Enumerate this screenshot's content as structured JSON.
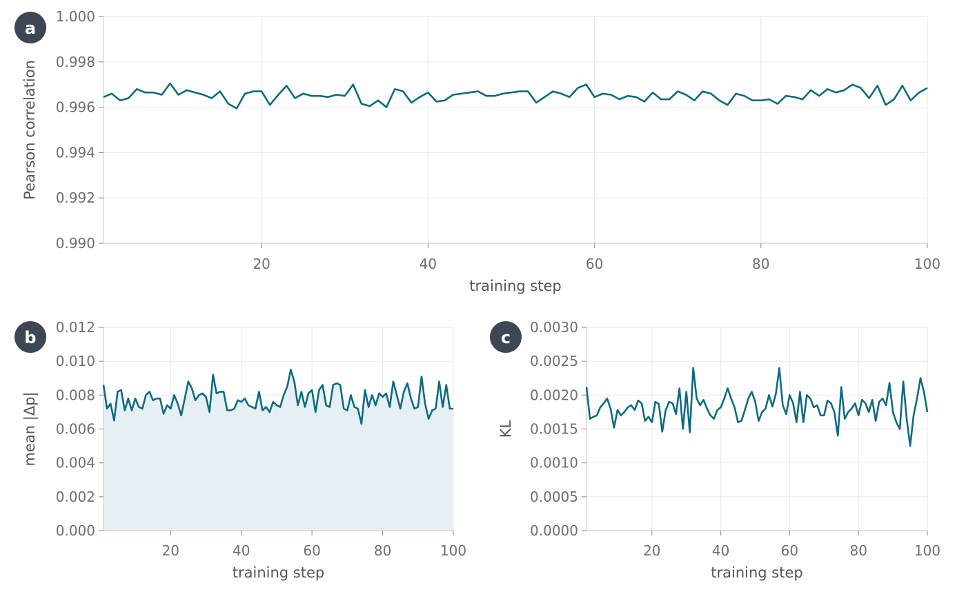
{
  "chart_data": [
    {
      "panel": "a",
      "type": "line",
      "xlabel": "training step",
      "ylabel": "Pearson correlation",
      "xlim": [
        1,
        100
      ],
      "ylim": [
        0.99,
        1.0
      ],
      "xticks": [
        20,
        40,
        60,
        80,
        100
      ],
      "yticks": [
        0.99,
        0.992,
        0.994,
        0.996,
        0.998,
        1.0
      ],
      "xtick_labels": [
        "20",
        "40",
        "60",
        "80",
        "100"
      ],
      "ytick_labels": [
        "0.990",
        "0.992",
        "0.994",
        "0.996",
        "0.998",
        "1.000"
      ],
      "grid": true,
      "fill": false,
      "color": "#0e6a7e",
      "series": [
        {
          "x": [
            1,
            2,
            3,
            4,
            5,
            6,
            7,
            8,
            9,
            10,
            11,
            12,
            13,
            14,
            15,
            16,
            17,
            18,
            19,
            20,
            21,
            22,
            23,
            24,
            25,
            26,
            27,
            28,
            29,
            30,
            31,
            32,
            33,
            34,
            35,
            36,
            37,
            38,
            39,
            40,
            41,
            42,
            43,
            44,
            45,
            46,
            47,
            48,
            49,
            50,
            51,
            52,
            53,
            54,
            55,
            56,
            57,
            58,
            59,
            60,
            61,
            62,
            63,
            64,
            65,
            66,
            67,
            68,
            69,
            70,
            71,
            72,
            73,
            74,
            75,
            76,
            77,
            78,
            79,
            80,
            81,
            82,
            83,
            84,
            85,
            86,
            87,
            88,
            89,
            90,
            91,
            92,
            93,
            94,
            95,
            96,
            97,
            98,
            99,
            100
          ],
          "values": [
            0.99645,
            0.9966,
            0.9963,
            0.9964,
            0.9968,
            0.99665,
            0.99665,
            0.99655,
            0.99705,
            0.99655,
            0.99675,
            0.99665,
            0.99655,
            0.9964,
            0.9967,
            0.99615,
            0.99595,
            0.9966,
            0.9967,
            0.9967,
            0.9961,
            0.99655,
            0.99695,
            0.9964,
            0.9966,
            0.9965,
            0.9965,
            0.99645,
            0.99655,
            0.9965,
            0.997,
            0.99615,
            0.99605,
            0.9963,
            0.996,
            0.9968,
            0.9967,
            0.9962,
            0.99645,
            0.99665,
            0.99625,
            0.9963,
            0.99655,
            0.9966,
            0.99665,
            0.9967,
            0.9965,
            0.9965,
            0.9966,
            0.99665,
            0.9967,
            0.9967,
            0.9962,
            0.99645,
            0.9967,
            0.9966,
            0.99645,
            0.99685,
            0.997,
            0.99645,
            0.9966,
            0.99655,
            0.99635,
            0.9965,
            0.99645,
            0.99625,
            0.99665,
            0.99635,
            0.99635,
            0.9967,
            0.99655,
            0.9963,
            0.9967,
            0.9966,
            0.9963,
            0.9961,
            0.9966,
            0.9965,
            0.9963,
            0.9963,
            0.99635,
            0.99615,
            0.9965,
            0.99645,
            0.99635,
            0.99675,
            0.9965,
            0.9968,
            0.99665,
            0.99675,
            0.997,
            0.99685,
            0.9964,
            0.99695,
            0.9961,
            0.99635,
            0.99695,
            0.9963,
            0.99665,
            0.99685
          ]
        }
      ]
    },
    {
      "panel": "b",
      "type": "area",
      "xlabel": "training step",
      "ylabel": "mean |Δp|",
      "xlim": [
        1,
        100
      ],
      "ylim": [
        0.0,
        0.012
      ],
      "xticks": [
        20,
        40,
        60,
        80,
        100
      ],
      "yticks": [
        0.0,
        0.002,
        0.004,
        0.006,
        0.008,
        0.01,
        0.012
      ],
      "xtick_labels": [
        "20",
        "40",
        "60",
        "80",
        "100"
      ],
      "ytick_labels": [
        "0.000",
        "0.002",
        "0.004",
        "0.006",
        "0.008",
        "0.010",
        "0.012"
      ],
      "grid": true,
      "fill": true,
      "color": "#0e6a7e",
      "fill_color": "#e6f0f4",
      "series": [
        {
          "x": [
            1,
            2,
            3,
            4,
            5,
            6,
            7,
            8,
            9,
            10,
            11,
            12,
            13,
            14,
            15,
            16,
            17,
            18,
            19,
            20,
            21,
            22,
            23,
            24,
            25,
            26,
            27,
            28,
            29,
            30,
            31,
            32,
            33,
            34,
            35,
            36,
            37,
            38,
            39,
            40,
            41,
            42,
            43,
            44,
            45,
            46,
            47,
            48,
            49,
            50,
            51,
            52,
            53,
            54,
            55,
            56,
            57,
            58,
            59,
            60,
            61,
            62,
            63,
            64,
            65,
            66,
            67,
            68,
            69,
            70,
            71,
            72,
            73,
            74,
            75,
            76,
            77,
            78,
            79,
            80,
            81,
            82,
            83,
            84,
            85,
            86,
            87,
            88,
            89,
            90,
            91,
            92,
            93,
            94,
            95,
            96,
            97,
            98,
            99,
            100
          ],
          "values": [
            0.0086,
            0.0072,
            0.0075,
            0.0065,
            0.0082,
            0.0083,
            0.0071,
            0.0078,
            0.0071,
            0.0078,
            0.0073,
            0.0072,
            0.008,
            0.0082,
            0.0077,
            0.0078,
            0.0078,
            0.0069,
            0.0074,
            0.0072,
            0.008,
            0.0075,
            0.0068,
            0.0078,
            0.0088,
            0.0084,
            0.0077,
            0.008,
            0.0081,
            0.0079,
            0.007,
            0.0092,
            0.0081,
            0.0082,
            0.0082,
            0.0071,
            0.0071,
            0.0072,
            0.0077,
            0.0076,
            0.0078,
            0.0074,
            0.0073,
            0.0072,
            0.0082,
            0.0071,
            0.0073,
            0.007,
            0.0076,
            0.0074,
            0.0073,
            0.008,
            0.0085,
            0.0095,
            0.0088,
            0.0074,
            0.0082,
            0.0073,
            0.0081,
            0.0083,
            0.007,
            0.0083,
            0.0086,
            0.0074,
            0.0073,
            0.0086,
            0.0087,
            0.0086,
            0.0072,
            0.0071,
            0.008,
            0.0073,
            0.0072,
            0.0063,
            0.0083,
            0.0073,
            0.008,
            0.0074,
            0.0081,
            0.0079,
            0.0081,
            0.0073,
            0.0088,
            0.008,
            0.0072,
            0.0082,
            0.0087,
            0.0078,
            0.0072,
            0.0073,
            0.0091,
            0.0075,
            0.0066,
            0.0071,
            0.0072,
            0.0088,
            0.0073,
            0.0086,
            0.0072,
            0.0072
          ]
        }
      ]
    },
    {
      "panel": "c",
      "type": "line",
      "xlabel": "training step",
      "ylabel": "KL",
      "xlim": [
        1,
        100
      ],
      "ylim": [
        0.0,
        0.003
      ],
      "xticks": [
        20,
        40,
        60,
        80,
        100
      ],
      "yticks": [
        0.0,
        0.0005,
        0.001,
        0.0015,
        0.002,
        0.0025,
        0.003
      ],
      "xtick_labels": [
        "20",
        "40",
        "60",
        "80",
        "100"
      ],
      "ytick_labels": [
        "0.0000",
        "0.0005",
        "0.0010",
        "0.0015",
        "0.0020",
        "0.0025",
        "0.0030"
      ],
      "grid": true,
      "fill": false,
      "color": "#0e6a7e",
      "series": [
        {
          "x": [
            1,
            2,
            3,
            4,
            5,
            6,
            7,
            8,
            9,
            10,
            11,
            12,
            13,
            14,
            15,
            16,
            17,
            18,
            19,
            20,
            21,
            22,
            23,
            24,
            25,
            26,
            27,
            28,
            29,
            30,
            31,
            32,
            33,
            34,
            35,
            36,
            37,
            38,
            39,
            40,
            41,
            42,
            43,
            44,
            45,
            46,
            47,
            48,
            49,
            50,
            51,
            52,
            53,
            54,
            55,
            56,
            57,
            58,
            59,
            60,
            61,
            62,
            63,
            64,
            65,
            66,
            67,
            68,
            69,
            70,
            71,
            72,
            73,
            74,
            75,
            76,
            77,
            78,
            79,
            80,
            81,
            82,
            83,
            84,
            85,
            86,
            87,
            88,
            89,
            90,
            91,
            92,
            93,
            94,
            95,
            96,
            97,
            98,
            99,
            100
          ],
          "values": [
            0.00212,
            0.00165,
            0.00168,
            0.0017,
            0.00182,
            0.00188,
            0.00195,
            0.0018,
            0.00152,
            0.00178,
            0.0017,
            0.00175,
            0.00182,
            0.00185,
            0.00178,
            0.00192,
            0.00188,
            0.00162,
            0.00168,
            0.0016,
            0.0019,
            0.00187,
            0.00146,
            0.00178,
            0.0019,
            0.00188,
            0.00172,
            0.0021,
            0.0015,
            0.00205,
            0.00145,
            0.0024,
            0.00195,
            0.00185,
            0.00193,
            0.0018,
            0.0017,
            0.00165,
            0.00178,
            0.00182,
            0.00195,
            0.0021,
            0.00195,
            0.00182,
            0.0016,
            0.00162,
            0.00178,
            0.00195,
            0.00205,
            0.0019,
            0.00162,
            0.00175,
            0.0018,
            0.002,
            0.00183,
            0.00202,
            0.0024,
            0.00185,
            0.00172,
            0.002,
            0.00188,
            0.0016,
            0.00205,
            0.0016,
            0.002,
            0.00195,
            0.00182,
            0.00185,
            0.0017,
            0.0017,
            0.00192,
            0.00188,
            0.00175,
            0.0014,
            0.00212,
            0.00165,
            0.00175,
            0.0018,
            0.00188,
            0.0017,
            0.00193,
            0.00188,
            0.00175,
            0.00193,
            0.00162,
            0.0019,
            0.00195,
            0.00185,
            0.00218,
            0.00175,
            0.0016,
            0.0015,
            0.0022,
            0.00165,
            0.00125,
            0.0017,
            0.00195,
            0.00225,
            0.00205,
            0.00175
          ]
        }
      ]
    }
  ],
  "badges": [
    "a",
    "b",
    "c"
  ]
}
